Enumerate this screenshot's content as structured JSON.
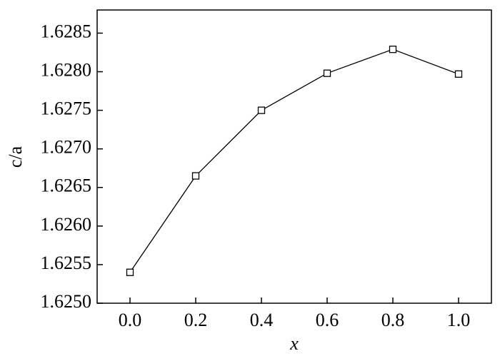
{
  "chart_data": {
    "type": "line",
    "x_label": "x",
    "y_label": "c/a",
    "x": [
      0.0,
      0.2,
      0.4,
      0.6,
      0.8,
      1.0
    ],
    "series": [
      {
        "color": "#000000",
        "values": [
          1.6254,
          1.62665,
          1.6275,
          1.62798,
          1.62829,
          1.62797
        ]
      }
    ],
    "xlim": [
      -0.1,
      1.1
    ],
    "xticks": [
      {
        "value": 0,
        "label": "0.0"
      },
      0.2,
      0.4,
      0.6,
      0.8,
      {
        "value": 1,
        "label": "1.0"
      }
    ],
    "ylim": [
      1.625,
      1.6288
    ],
    "yticks": [
      {
        "value": 1.625,
        "label": "1.6250"
      },
      {
        "value": 1.6255,
        "label": "1.6255"
      },
      {
        "value": 1.626,
        "label": "1.6260"
      },
      {
        "value": 1.6265,
        "label": "1.6265"
      },
      {
        "value": 1.627,
        "label": "1.6270"
      },
      {
        "value": 1.6275,
        "label": "1.6275"
      },
      {
        "value": 1.628,
        "label": "1.6280"
      },
      {
        "value": 1.6285,
        "label": "1.6285"
      }
    ],
    "grid": false
  }
}
